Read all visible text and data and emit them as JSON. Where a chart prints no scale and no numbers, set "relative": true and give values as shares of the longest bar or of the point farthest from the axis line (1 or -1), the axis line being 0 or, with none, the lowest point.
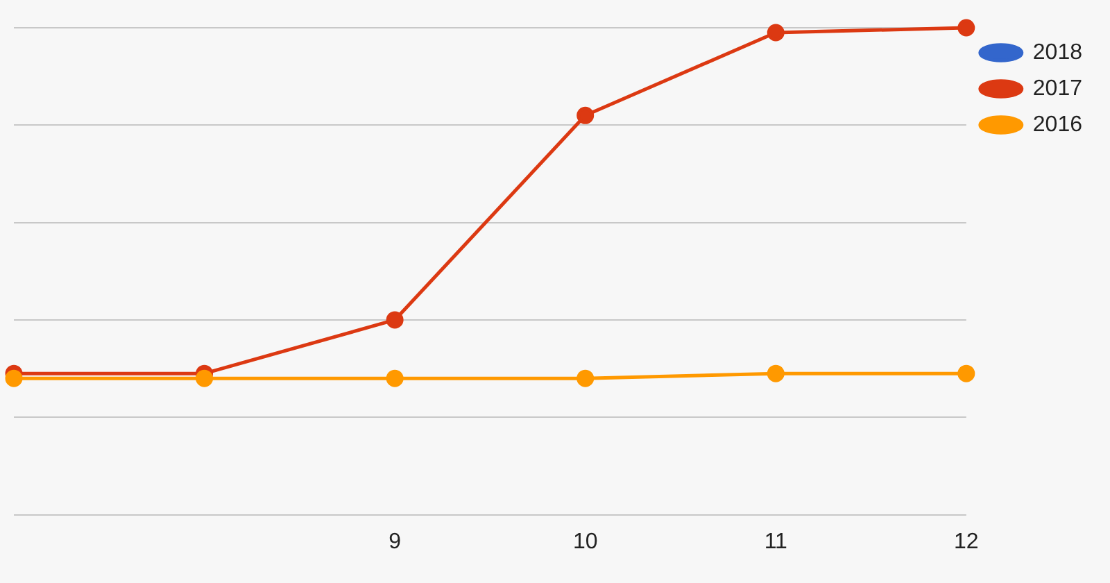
{
  "chart_data": {
    "type": "line",
    "relative": true,
    "categories": [
      null,
      null,
      "9",
      "10",
      "11",
      "12"
    ],
    "series": [
      {
        "name": "2018",
        "color": "#3366cc",
        "values": [
          null,
          null,
          null,
          null,
          null,
          null
        ]
      },
      {
        "name": "2017",
        "color": "#dc3912",
        "values": [
          0.29,
          0.29,
          0.4,
          0.82,
          0.99,
          1
        ]
      },
      {
        "name": "2016",
        "color": "#ff9900",
        "values": [
          0.28,
          0.28,
          0.28,
          0.28,
          0.29,
          0.29
        ]
      }
    ],
    "grid": "y",
    "legend": "top right",
    "marker": "circle",
    "line_style": "solid"
  }
}
